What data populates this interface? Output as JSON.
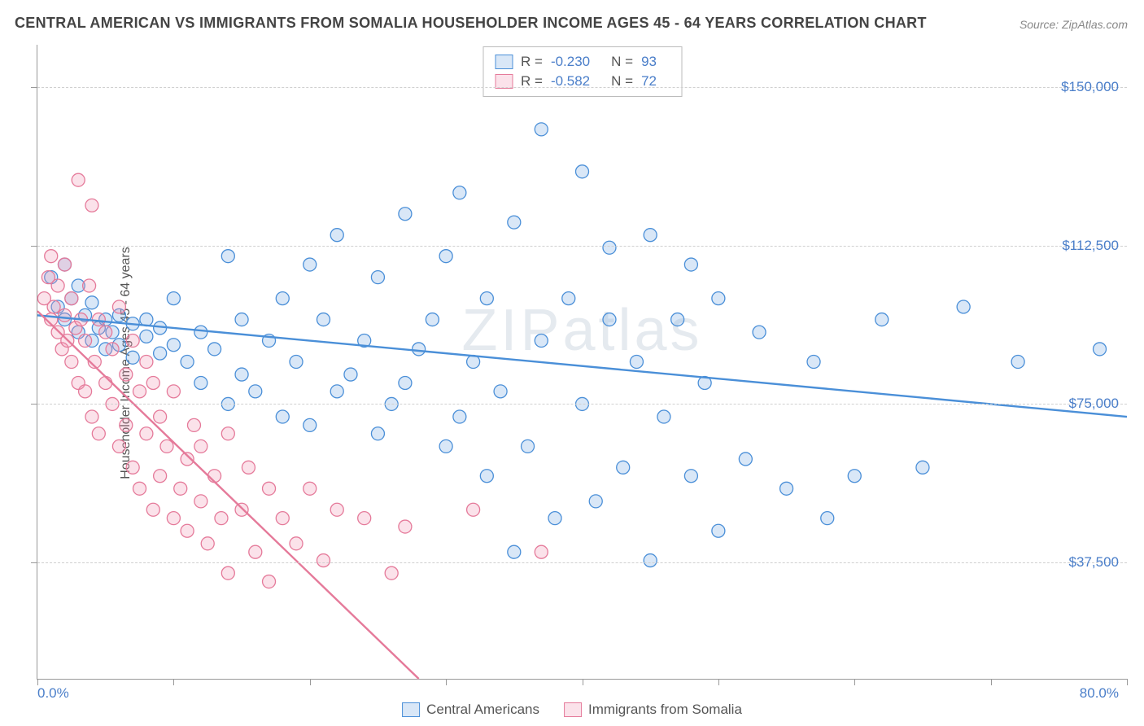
{
  "title": "CENTRAL AMERICAN VS IMMIGRANTS FROM SOMALIA HOUSEHOLDER INCOME AGES 45 - 64 YEARS CORRELATION CHART",
  "source": "Source: ZipAtlas.com",
  "ylabel": "Householder Income Ages 45 - 64 years",
  "watermark": "ZIPatlas",
  "chart": {
    "type": "scatter",
    "background_color": "#ffffff",
    "grid_color": "#d0d0d0",
    "axis_color": "#999999",
    "label_fontsize": 16,
    "tick_fontsize": 17,
    "tick_color": "#4a7ec9",
    "xlim": [
      0,
      80
    ],
    "ylim": [
      10000,
      160000
    ],
    "x_tick_step": 10,
    "y_ticks": [
      37500,
      75000,
      112500,
      150000
    ],
    "y_tick_labels": [
      "$37,500",
      "$75,000",
      "$112,500",
      "$150,000"
    ],
    "xlim_labels": [
      "0.0%",
      "80.0%"
    ],
    "marker_radius": 8,
    "marker_fill_opacity": 0.25,
    "marker_stroke_width": 1.3,
    "trend_line_width": 2.4,
    "series": [
      {
        "id": "central_americans",
        "label": "Central Americans",
        "color": "#4a8fd8",
        "fill": "rgba(120,170,225,0.28)",
        "R": "-0.230",
        "N": "93",
        "trend": {
          "x1": 0,
          "y1": 96000,
          "x2": 80,
          "y2": 72000
        },
        "points": [
          [
            1,
            105000
          ],
          [
            1.5,
            98000
          ],
          [
            2,
            108000
          ],
          [
            2,
            95000
          ],
          [
            2.5,
            100000
          ],
          [
            3,
            92000
          ],
          [
            3,
            103000
          ],
          [
            3.5,
            96000
          ],
          [
            4,
            90000
          ],
          [
            4,
            99000
          ],
          [
            4.5,
            93000
          ],
          [
            5,
            95000
          ],
          [
            5,
            88000
          ],
          [
            5.5,
            92000
          ],
          [
            6,
            96000
          ],
          [
            6,
            89000
          ],
          [
            7,
            94000
          ],
          [
            7,
            86000
          ],
          [
            8,
            91000
          ],
          [
            8,
            95000
          ],
          [
            9,
            93000
          ],
          [
            9,
            87000
          ],
          [
            10,
            89000
          ],
          [
            10,
            100000
          ],
          [
            11,
            85000
          ],
          [
            12,
            92000
          ],
          [
            12,
            80000
          ],
          [
            13,
            88000
          ],
          [
            14,
            110000
          ],
          [
            14,
            75000
          ],
          [
            15,
            82000
          ],
          [
            15,
            95000
          ],
          [
            16,
            78000
          ],
          [
            17,
            90000
          ],
          [
            18,
            72000
          ],
          [
            18,
            100000
          ],
          [
            19,
            85000
          ],
          [
            20,
            70000
          ],
          [
            20,
            108000
          ],
          [
            21,
            95000
          ],
          [
            22,
            78000
          ],
          [
            22,
            115000
          ],
          [
            23,
            82000
          ],
          [
            24,
            90000
          ],
          [
            25,
            68000
          ],
          [
            25,
            105000
          ],
          [
            26,
            75000
          ],
          [
            27,
            120000
          ],
          [
            27,
            80000
          ],
          [
            28,
            88000
          ],
          [
            29,
            95000
          ],
          [
            30,
            65000
          ],
          [
            30,
            110000
          ],
          [
            31,
            125000
          ],
          [
            31,
            72000
          ],
          [
            32,
            85000
          ],
          [
            33,
            100000
          ],
          [
            33,
            58000
          ],
          [
            34,
            78000
          ],
          [
            35,
            118000
          ],
          [
            35,
            40000
          ],
          [
            36,
            65000
          ],
          [
            37,
            140000
          ],
          [
            37,
            90000
          ],
          [
            38,
            48000
          ],
          [
            39,
            100000
          ],
          [
            40,
            75000
          ],
          [
            40,
            130000
          ],
          [
            41,
            52000
          ],
          [
            42,
            95000
          ],
          [
            42,
            112000
          ],
          [
            43,
            60000
          ],
          [
            44,
            85000
          ],
          [
            45,
            115000
          ],
          [
            45,
            38000
          ],
          [
            46,
            72000
          ],
          [
            47,
            95000
          ],
          [
            48,
            58000
          ],
          [
            48,
            108000
          ],
          [
            49,
            80000
          ],
          [
            50,
            100000
          ],
          [
            50,
            45000
          ],
          [
            52,
            62000
          ],
          [
            53,
            92000
          ],
          [
            55,
            55000
          ],
          [
            57,
            85000
          ],
          [
            58,
            48000
          ],
          [
            60,
            58000
          ],
          [
            62,
            95000
          ],
          [
            65,
            60000
          ],
          [
            68,
            98000
          ],
          [
            72,
            85000
          ],
          [
            78,
            88000
          ]
        ]
      },
      {
        "id": "immigrants_somalia",
        "label": "Immigrants from Somalia",
        "color": "#e57a9a",
        "fill": "rgba(240,150,180,0.28)",
        "R": "-0.582",
        "N": "72",
        "trend": {
          "x1": 0,
          "y1": 97000,
          "x2": 28,
          "y2": 10000
        },
        "points": [
          [
            0.5,
            100000
          ],
          [
            0.8,
            105000
          ],
          [
            1,
            95000
          ],
          [
            1,
            110000
          ],
          [
            1.2,
            98000
          ],
          [
            1.5,
            92000
          ],
          [
            1.5,
            103000
          ],
          [
            1.8,
            88000
          ],
          [
            2,
            96000
          ],
          [
            2,
            108000
          ],
          [
            2.2,
            90000
          ],
          [
            2.5,
            85000
          ],
          [
            2.5,
            100000
          ],
          [
            2.8,
            93000
          ],
          [
            3,
            80000
          ],
          [
            3,
            128000
          ],
          [
            3.2,
            95000
          ],
          [
            3.5,
            78000
          ],
          [
            3.5,
            90000
          ],
          [
            3.8,
            103000
          ],
          [
            4,
            72000
          ],
          [
            4,
            122000
          ],
          [
            4.2,
            85000
          ],
          [
            4.5,
            95000
          ],
          [
            4.5,
            68000
          ],
          [
            5,
            80000
          ],
          [
            5,
            92000
          ],
          [
            5.5,
            75000
          ],
          [
            5.5,
            88000
          ],
          [
            6,
            65000
          ],
          [
            6,
            98000
          ],
          [
            6.5,
            82000
          ],
          [
            6.5,
            70000
          ],
          [
            7,
            60000
          ],
          [
            7,
            90000
          ],
          [
            7.5,
            78000
          ],
          [
            7.5,
            55000
          ],
          [
            8,
            85000
          ],
          [
            8,
            68000
          ],
          [
            8.5,
            50000
          ],
          [
            8.5,
            80000
          ],
          [
            9,
            72000
          ],
          [
            9,
            58000
          ],
          [
            9.5,
            65000
          ],
          [
            10,
            48000
          ],
          [
            10,
            78000
          ],
          [
            10.5,
            55000
          ],
          [
            11,
            62000
          ],
          [
            11,
            45000
          ],
          [
            11.5,
            70000
          ],
          [
            12,
            52000
          ],
          [
            12,
            65000
          ],
          [
            12.5,
            42000
          ],
          [
            13,
            58000
          ],
          [
            13.5,
            48000
          ],
          [
            14,
            68000
          ],
          [
            14,
            35000
          ],
          [
            15,
            50000
          ],
          [
            15.5,
            60000
          ],
          [
            16,
            40000
          ],
          [
            17,
            55000
          ],
          [
            17,
            33000
          ],
          [
            18,
            48000
          ],
          [
            19,
            42000
          ],
          [
            20,
            55000
          ],
          [
            21,
            38000
          ],
          [
            22,
            50000
          ],
          [
            24,
            48000
          ],
          [
            26,
            35000
          ],
          [
            27,
            46000
          ],
          [
            32,
            50000
          ],
          [
            37,
            40000
          ]
        ]
      }
    ],
    "stats_box": {
      "border_color": "#bbbbbb",
      "text_color": "#555555",
      "value_color": "#4a7ec9"
    },
    "bottom_legend": {
      "fontsize": 17,
      "text_color": "#555555"
    }
  }
}
